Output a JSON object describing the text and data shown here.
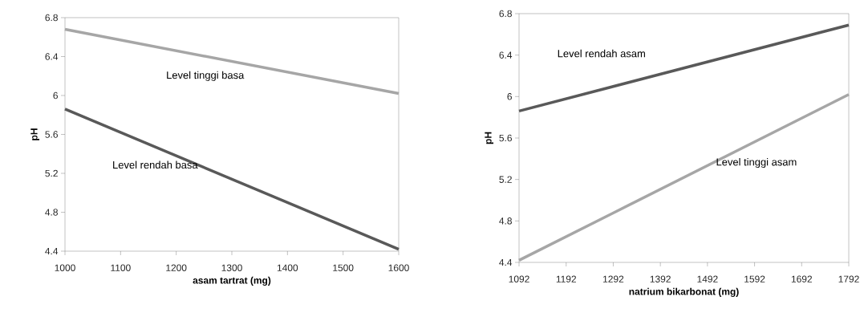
{
  "chart_data": [
    {
      "type": "line",
      "xlabel": "asam tartrat (mg)",
      "ylabel": "pH",
      "xlim": [
        1000,
        1600
      ],
      "ylim": [
        4.4,
        6.8
      ],
      "xticks": [
        1000,
        1100,
        1200,
        1300,
        1400,
        1500,
        1600
      ],
      "yticks": [
        4.4,
        4.8,
        5.2,
        5.6,
        6,
        6.4,
        6.8
      ],
      "series": [
        {
          "name": "Level tinggi basa",
          "color": "#a6a6a6",
          "x": [
            1000,
            1600
          ],
          "values": [
            6.68,
            6.02
          ]
        },
        {
          "name": "Level  rendah basa",
          "color": "#595959",
          "x": [
            1000,
            1600
          ],
          "values": [
            5.86,
            4.42
          ]
        }
      ]
    },
    {
      "type": "line",
      "xlabel": "natrium bikarbonat  (mg)",
      "ylabel": "pH",
      "xlim": [
        1092,
        1792
      ],
      "ylim": [
        4.4,
        6.8
      ],
      "xticks": [
        1092,
        1192,
        1292,
        1392,
        1492,
        1592,
        1692,
        1792
      ],
      "yticks": [
        4.4,
        4.8,
        5.2,
        5.6,
        6,
        6.4,
        6.8
      ],
      "series": [
        {
          "name": "Level rendah asam",
          "color": "#595959",
          "x": [
            1092,
            1792
          ],
          "values": [
            5.86,
            6.69
          ]
        },
        {
          "name": "Level tinggi asam",
          "color": "#a6a6a6",
          "x": [
            1092,
            1792
          ],
          "values": [
            4.42,
            6.02
          ]
        }
      ]
    }
  ]
}
